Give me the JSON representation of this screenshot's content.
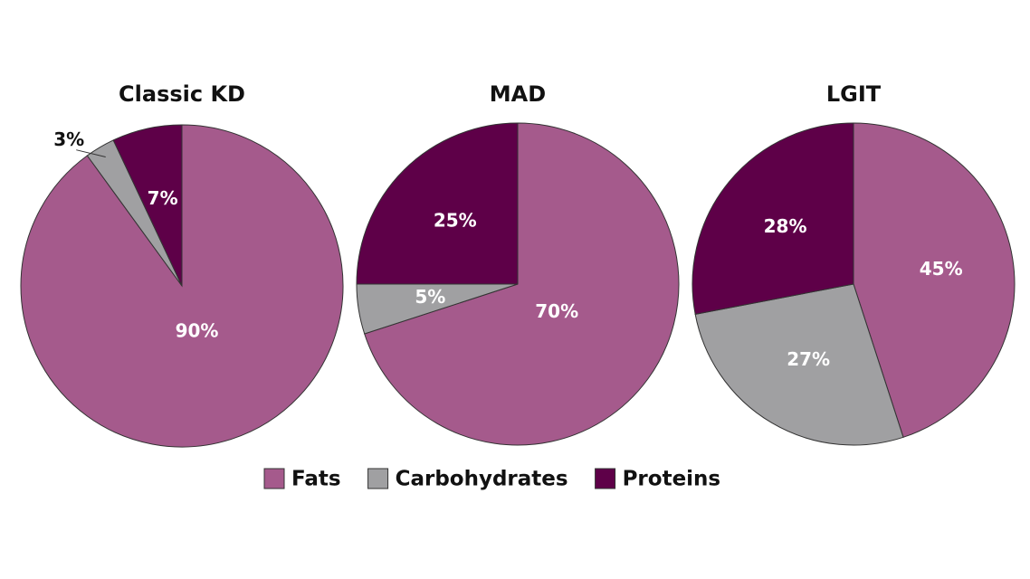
{
  "chart_data": [
    {
      "type": "pie",
      "title": "Classic KD",
      "categories": [
        "Fats",
        "Carbohydrates",
        "Proteins"
      ],
      "values": [
        90,
        3,
        7
      ],
      "value_labels": [
        "90%",
        "3%",
        "7%"
      ],
      "colors": [
        "#a55a8c",
        "#a0a0a2",
        "#5e0048"
      ]
    },
    {
      "type": "pie",
      "title": "MAD",
      "categories": [
        "Fats",
        "Carbohydrates",
        "Proteins"
      ],
      "values": [
        70,
        5,
        25
      ],
      "value_labels": [
        "70%",
        "5%",
        "25%"
      ],
      "colors": [
        "#a55a8c",
        "#a0a0a2",
        "#5e0048"
      ]
    },
    {
      "type": "pie",
      "title": "LGIT",
      "categories": [
        "Fats",
        "Carbohydrates",
        "Proteins"
      ],
      "values": [
        45,
        27,
        28
      ],
      "value_labels": [
        "45%",
        "27%",
        "28%"
      ],
      "colors": [
        "#a55a8c",
        "#a0a0a2",
        "#5e0048"
      ]
    }
  ]
}
